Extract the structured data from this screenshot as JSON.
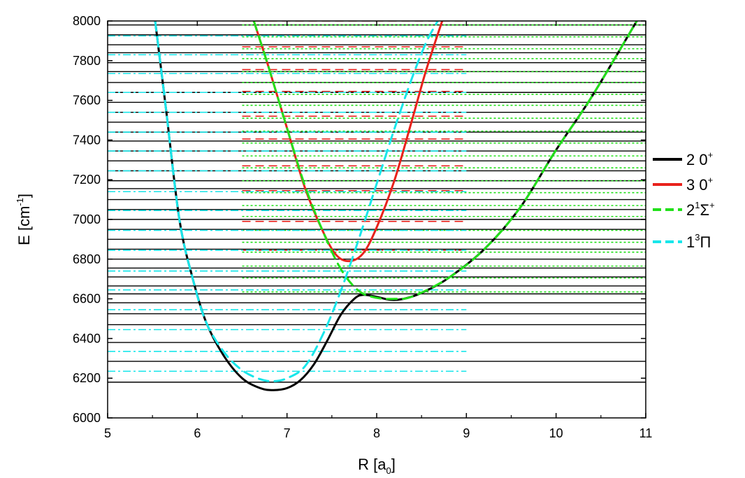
{
  "chart_data": {
    "type": "line",
    "xlabel": {
      "main": "R [a",
      "sub": "0",
      "close": "]"
    },
    "ylabel": {
      "main": "E [cm",
      "sup": "-1",
      "close": "]"
    },
    "xlim": [
      5,
      11
    ],
    "ylim": [
      6000,
      8000
    ],
    "xticks": [
      5,
      6,
      7,
      8,
      9,
      10,
      11
    ],
    "yticks": [
      6000,
      6200,
      6400,
      6600,
      6800,
      7000,
      7200,
      7400,
      7600,
      7800,
      8000
    ],
    "colors": {
      "black": "#000000",
      "red": "#e8221c",
      "green": "#22e01a",
      "cyan": "#18e6ea"
    },
    "series": [
      {
        "name": "2 0+",
        "legend": {
          "base": "2 0",
          "sup": "+"
        },
        "style": "solid",
        "color": "#000000",
        "points": [
          [
            5.53,
            8000
          ],
          [
            5.65,
            7560
          ],
          [
            5.8,
            7000
          ],
          [
            5.95,
            6700
          ],
          [
            6.1,
            6480
          ],
          [
            6.3,
            6310
          ],
          [
            6.5,
            6200
          ],
          [
            6.7,
            6150
          ],
          [
            6.85,
            6140
          ],
          [
            7.0,
            6150
          ],
          [
            7.15,
            6190
          ],
          [
            7.3,
            6270
          ],
          [
            7.45,
            6390
          ],
          [
            7.6,
            6520
          ],
          [
            7.75,
            6600
          ],
          [
            7.85,
            6620
          ],
          [
            8.0,
            6610
          ],
          [
            8.15,
            6595
          ],
          [
            8.3,
            6600
          ],
          [
            8.5,
            6630
          ],
          [
            8.8,
            6705
          ],
          [
            9.2,
            6850
          ],
          [
            9.6,
            7060
          ],
          [
            10.0,
            7350
          ],
          [
            10.4,
            7620
          ],
          [
            10.9,
            8000
          ]
        ]
      },
      {
        "name": "3 0+",
        "legend": {
          "base": "3 0",
          "sup": "+"
        },
        "style": "solid",
        "color": "#e8221c",
        "points": [
          [
            6.63,
            8000
          ],
          [
            6.8,
            7760
          ],
          [
            7.0,
            7460
          ],
          [
            7.2,
            7160
          ],
          [
            7.4,
            6940
          ],
          [
            7.55,
            6820
          ],
          [
            7.7,
            6790
          ],
          [
            7.85,
            6830
          ],
          [
            8.0,
            6960
          ],
          [
            8.2,
            7200
          ],
          [
            8.4,
            7510
          ],
          [
            8.55,
            7750
          ],
          [
            8.73,
            8000
          ]
        ]
      },
      {
        "name": "2 1Σ+",
        "legend": {
          "base": "2",
          "sup1": "1",
          "mid": "Σ",
          "sup2": "+"
        },
        "style": "dashed",
        "color": "#22e01a",
        "points": [
          [
            6.63,
            8000
          ],
          [
            6.8,
            7760
          ],
          [
            7.0,
            7460
          ],
          [
            7.2,
            7170
          ],
          [
            7.4,
            6940
          ],
          [
            7.6,
            6750
          ],
          [
            7.8,
            6640
          ],
          [
            8.0,
            6605
          ],
          [
            8.2,
            6600
          ],
          [
            8.4,
            6612
          ],
          [
            8.8,
            6705
          ],
          [
            9.2,
            6850
          ],
          [
            9.6,
            7060
          ],
          [
            10.0,
            7350
          ],
          [
            10.4,
            7620
          ],
          [
            10.9,
            8000
          ]
        ]
      },
      {
        "name": "1 3Π",
        "legend": {
          "base": "1",
          "sup1": "3",
          "mid": "Π"
        },
        "style": "dashed",
        "color": "#18e6ea",
        "points": [
          [
            5.53,
            8000
          ],
          [
            5.65,
            7560
          ],
          [
            5.8,
            7000
          ],
          [
            5.95,
            6700
          ],
          [
            6.1,
            6480
          ],
          [
            6.3,
            6330
          ],
          [
            6.5,
            6240
          ],
          [
            6.7,
            6195
          ],
          [
            6.85,
            6185
          ],
          [
            7.0,
            6200
          ],
          [
            7.2,
            6260
          ],
          [
            7.4,
            6420
          ],
          [
            7.6,
            6640
          ],
          [
            7.8,
            6900
          ],
          [
            8.0,
            7180
          ],
          [
            8.2,
            7460
          ],
          [
            8.4,
            7720
          ],
          [
            8.55,
            7890
          ],
          [
            8.68,
            8000
          ]
        ]
      }
    ],
    "levels": [
      {
        "series": "2 0+",
        "style": "solid",
        "color": "#000000",
        "x": [
          5,
          11
        ],
        "E": [
          6180,
          6285,
          6380,
          6470,
          6525,
          6580,
          6625,
          6665,
          6710,
          6755,
          6800,
          6850,
          6900,
          6950,
          7000,
          7050,
          7100,
          7155,
          7195,
          7245,
          7295,
          7345,
          7395,
          7440,
          7490,
          7540,
          7590,
          7640,
          7690,
          7745,
          7790,
          7840,
          7880,
          7930,
          7980
        ]
      },
      {
        "series": "3 0+",
        "style": "dashed",
        "color": "#e8221c",
        "x": [
          6.5,
          9
        ],
        "E": [
          6845,
          6990,
          7145,
          7270,
          7405,
          7520,
          7645,
          7755,
          7870,
          8000
        ]
      },
      {
        "series": "2 1Σ+",
        "style": "dotted",
        "color": "#22e01a",
        "x": [
          6.5,
          11
        ],
        "E": [
          6635,
          6705,
          6765,
          6835,
          6885,
          6945,
          7015,
          7070,
          7135,
          7195,
          7260,
          7320,
          7385,
          7445,
          7510,
          7575,
          7630,
          7690,
          7745,
          7810,
          7860,
          7920,
          7980
        ]
      },
      {
        "series": "1 3Π",
        "style": "dashdot",
        "color": "#18e6ea",
        "x": [
          5,
          9
        ],
        "E": [
          6235,
          6335,
          6445,
          6545,
          6645,
          6740,
          6845,
          6945,
          7045,
          7140,
          7245,
          7345,
          7440,
          7540,
          7640,
          7735,
          7830,
          7925
        ]
      }
    ]
  }
}
